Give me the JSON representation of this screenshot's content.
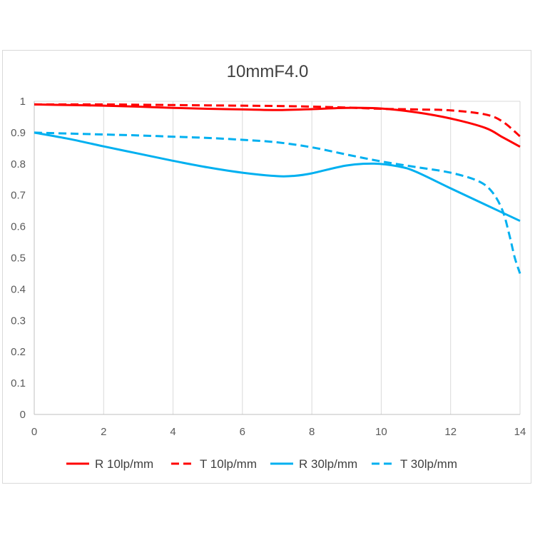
{
  "chart_data": {
    "type": "line",
    "title": "10mmF4.0",
    "xlim": [
      0,
      14
    ],
    "ylim": [
      0,
      1
    ],
    "xticks": [
      0,
      2,
      4,
      6,
      8,
      10,
      12,
      14
    ],
    "yticks": [
      0,
      0.1,
      0.2,
      0.3,
      0.4,
      0.5,
      0.6,
      0.7,
      0.8,
      0.9,
      1
    ],
    "grid": "vertical",
    "legend_position": "bottom",
    "series": [
      {
        "name": "R 10lp/mm",
        "color": "#ff0000",
        "dash": false,
        "points": [
          [
            0,
            0.99
          ],
          [
            1,
            0.988
          ],
          [
            2,
            0.986
          ],
          [
            3,
            0.983
          ],
          [
            4,
            0.979
          ],
          [
            5,
            0.976
          ],
          [
            6,
            0.974
          ],
          [
            7,
            0.972
          ],
          [
            8,
            0.975
          ],
          [
            9,
            0.979
          ],
          [
            10,
            0.977
          ],
          [
            11,
            0.965
          ],
          [
            12,
            0.945
          ],
          [
            13,
            0.915
          ],
          [
            13.5,
            0.885
          ],
          [
            14,
            0.855
          ]
        ]
      },
      {
        "name": "T 10lp/mm",
        "color": "#ff0000",
        "dash": true,
        "points": [
          [
            0,
            0.99
          ],
          [
            1,
            0.99
          ],
          [
            2,
            0.99
          ],
          [
            3,
            0.989
          ],
          [
            4,
            0.988
          ],
          [
            5,
            0.987
          ],
          [
            6,
            0.986
          ],
          [
            7,
            0.985
          ],
          [
            8,
            0.983
          ],
          [
            9,
            0.98
          ],
          [
            10,
            0.976
          ],
          [
            11,
            0.974
          ],
          [
            12,
            0.971
          ],
          [
            13,
            0.958
          ],
          [
            13.5,
            0.935
          ],
          [
            14,
            0.888
          ]
        ]
      },
      {
        "name": "R 30lp/mm",
        "color": "#00b0f0",
        "dash": false,
        "points": [
          [
            0,
            0.9
          ],
          [
            1,
            0.88
          ],
          [
            2,
            0.856
          ],
          [
            3,
            0.833
          ],
          [
            4,
            0.81
          ],
          [
            5,
            0.789
          ],
          [
            6,
            0.772
          ],
          [
            7,
            0.761
          ],
          [
            7.5,
            0.762
          ],
          [
            8,
            0.77
          ],
          [
            9,
            0.795
          ],
          [
            9.8,
            0.801
          ],
          [
            10.5,
            0.792
          ],
          [
            11,
            0.775
          ],
          [
            12,
            0.722
          ],
          [
            13,
            0.67
          ],
          [
            14,
            0.618
          ]
        ]
      },
      {
        "name": "T 30lp/mm",
        "color": "#00b0f0",
        "dash": true,
        "points": [
          [
            0,
            0.9
          ],
          [
            1,
            0.897
          ],
          [
            2,
            0.894
          ],
          [
            3,
            0.891
          ],
          [
            4,
            0.887
          ],
          [
            5,
            0.883
          ],
          [
            6,
            0.877
          ],
          [
            7,
            0.869
          ],
          [
            8,
            0.853
          ],
          [
            9,
            0.83
          ],
          [
            10,
            0.808
          ],
          [
            11,
            0.79
          ],
          [
            12,
            0.772
          ],
          [
            12.8,
            0.745
          ],
          [
            13.2,
            0.71
          ],
          [
            13.5,
            0.65
          ],
          [
            13.7,
            0.57
          ],
          [
            13.85,
            0.5
          ],
          [
            14,
            0.45
          ]
        ]
      }
    ]
  }
}
